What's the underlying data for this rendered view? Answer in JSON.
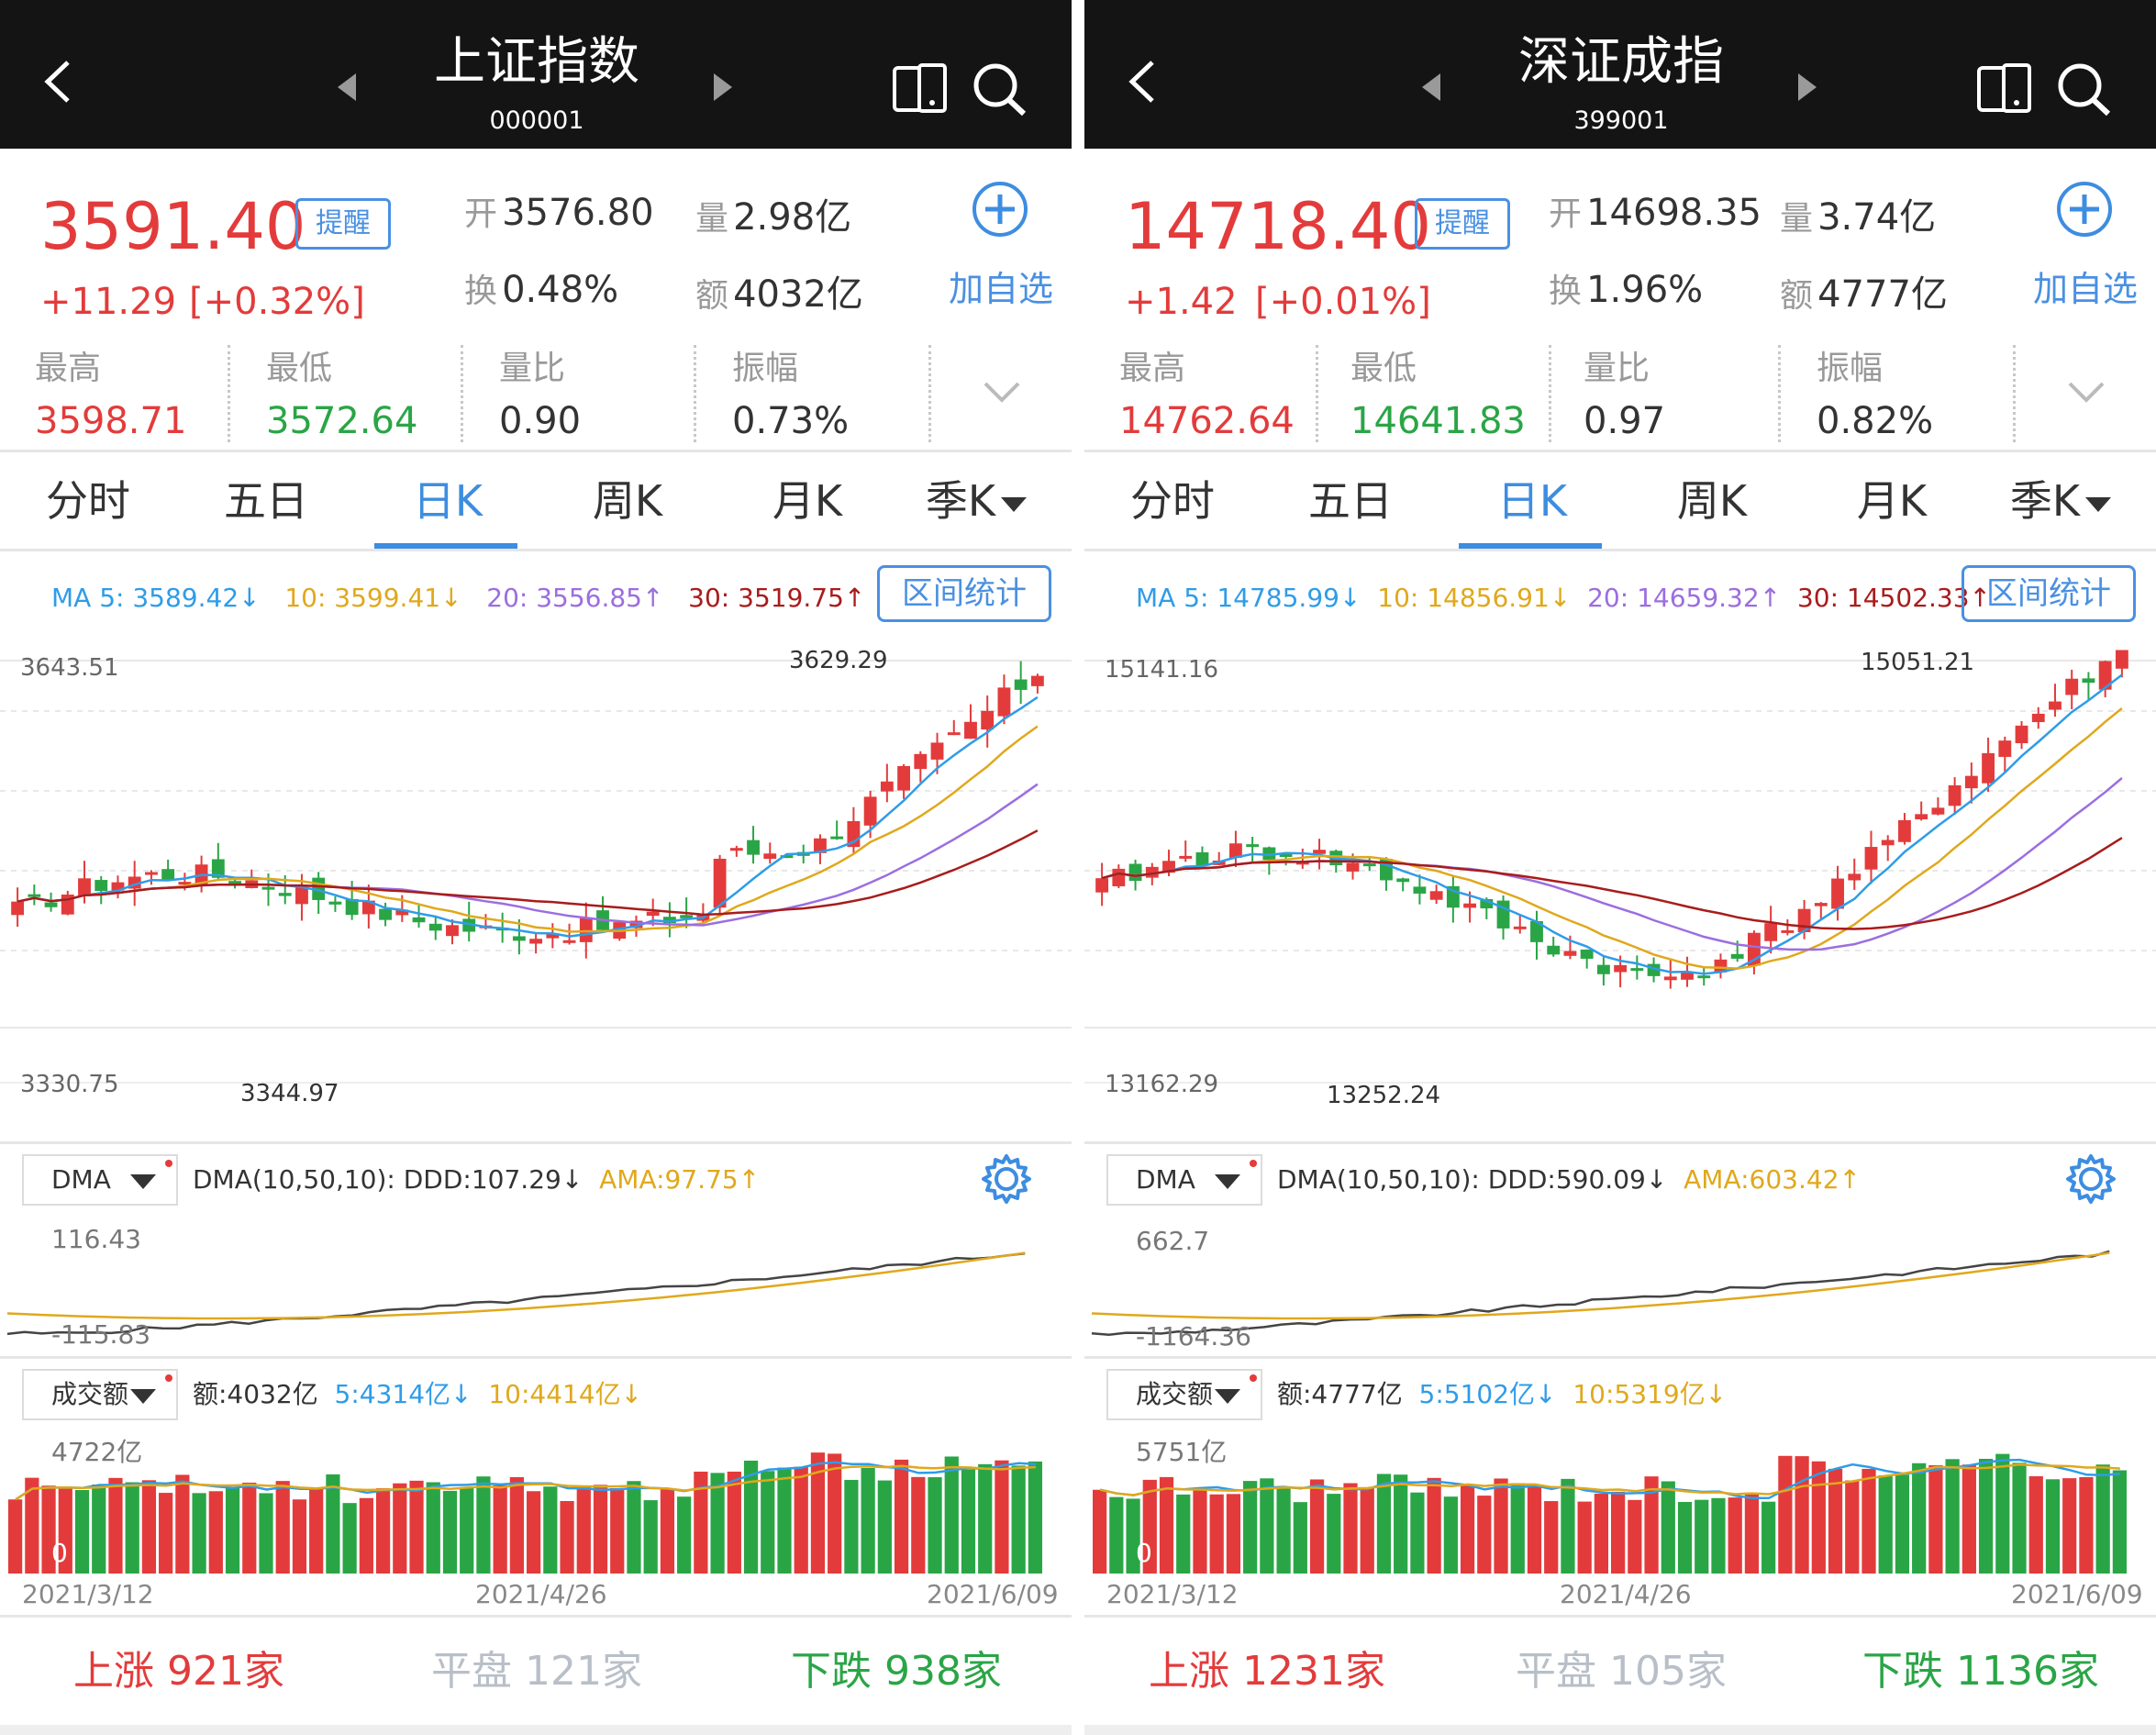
{
  "colors": {
    "up": "#e33b3b",
    "down": "#2aa546",
    "accent": "#3d8de0",
    "ma5": "#2f9ce8",
    "ma10": "#e0a81c",
    "ma20": "#9b6ee0",
    "ma30": "#a81c1c",
    "dma_ddd": "#444444",
    "dma_ama": "#e0a81c"
  },
  "icons": {
    "back": "chevron-left-icon",
    "prev": "triangle-left-icon",
    "next": "triangle-right-icon",
    "switch": "device-switch-icon",
    "search": "search-icon",
    "add": "plus-circle-icon",
    "expand": "chevron-down-icon",
    "settings": "gear-icon",
    "dropdown": "triangle-down-icon"
  },
  "tabs": [
    "分时",
    "五日",
    "日K",
    "周K",
    "月K",
    "季K"
  ],
  "active_tab_index": 2,
  "labels": {
    "alert": "提醒",
    "open": "开",
    "volume": "量",
    "turnover": "换",
    "amount": "额",
    "add_watch": "加自选",
    "high": "最高",
    "low": "最低",
    "vol_ratio": "量比",
    "amplitude": "振幅",
    "range_stats": "区间统计",
    "dma_selector": "DMA",
    "vol_selector": "成交额",
    "rise": "上涨",
    "flat": "平盘",
    "fall": "下跌"
  },
  "panels": [
    {
      "name": "上证指数",
      "code": "000001",
      "price": "3591.40",
      "change": "+11.29",
      "change_pct": "[+0.32%]",
      "open": "3576.80",
      "volume": "2.98亿",
      "turnover": "0.48%",
      "amount": "4032亿",
      "high": "3598.71",
      "low": "3572.64",
      "vol_ratio": "0.90",
      "amplitude": "0.73%",
      "ma": {
        "ma5": "MA 5: 3589.42",
        "ma10": "10: 3599.41",
        "ma20": "20: 3556.85",
        "ma30": "30: 3519.75"
      },
      "ma_arrows": [
        "↓",
        "↓",
        "↑",
        "↑"
      ],
      "axis_top": "3643.51",
      "axis_bottom": "3330.75",
      "max_label": "3629.29",
      "min_label": "3344.97",
      "dma_legend": "DMA(10,50,10): DDD:107.29",
      "dma_ddd_arrow": "↓",
      "dma_ama": "AMA:97.75",
      "dma_ama_arrow": "↑",
      "dma_top": "116.43",
      "dma_bottom": "-115.83",
      "vol_amount": "额:4032亿",
      "vol_ma5": "5:4314亿",
      "vol_ma10": "10:4414亿",
      "vol_arrows": [
        "↓",
        "↓"
      ],
      "vol_top": "4722亿",
      "vol_zero": "0",
      "dates": [
        "2021/3/12",
        "2021/4/26",
        "2021/6/09"
      ],
      "rise_count": "921家",
      "flat_count": "121家",
      "fall_count": "938家"
    },
    {
      "name": "深证成指",
      "code": "399001",
      "price": "14718.40",
      "change": "+1.42",
      "change_pct": "[+0.01%]",
      "open": "14698.35",
      "volume": "3.74亿",
      "turnover": "1.96%",
      "amount": "4777亿",
      "high": "14762.64",
      "low": "14641.83",
      "vol_ratio": "0.97",
      "amplitude": "0.82%",
      "ma": {
        "ma5": "MA 5: 14785.99",
        "ma10": "10: 14856.91",
        "ma20": "20: 14659.32",
        "ma30": "30: 14502.33"
      },
      "ma_arrows": [
        "↓",
        "↓",
        "↑",
        "↑"
      ],
      "axis_top": "15141.16",
      "axis_bottom": "13162.29",
      "max_label": "15051.21",
      "min_label": "13252.24",
      "dma_legend": "DMA(10,50,10): DDD:590.09",
      "dma_ddd_arrow": "↓",
      "dma_ama": "AMA:603.42",
      "dma_ama_arrow": "↑",
      "dma_top": "662.7",
      "dma_bottom": "-1164.36",
      "vol_amount": "额:4777亿",
      "vol_ma5": "5:5102亿",
      "vol_ma10": "10:5319亿",
      "vol_arrows": [
        "↓",
        "↓"
      ],
      "vol_top": "5751亿",
      "vol_zero": "0",
      "dates": [
        "2021/3/12",
        "2021/4/26",
        "2021/6/09"
      ],
      "rise_count": "1231家",
      "flat_count": "105家",
      "fall_count": "1136家"
    }
  ]
}
